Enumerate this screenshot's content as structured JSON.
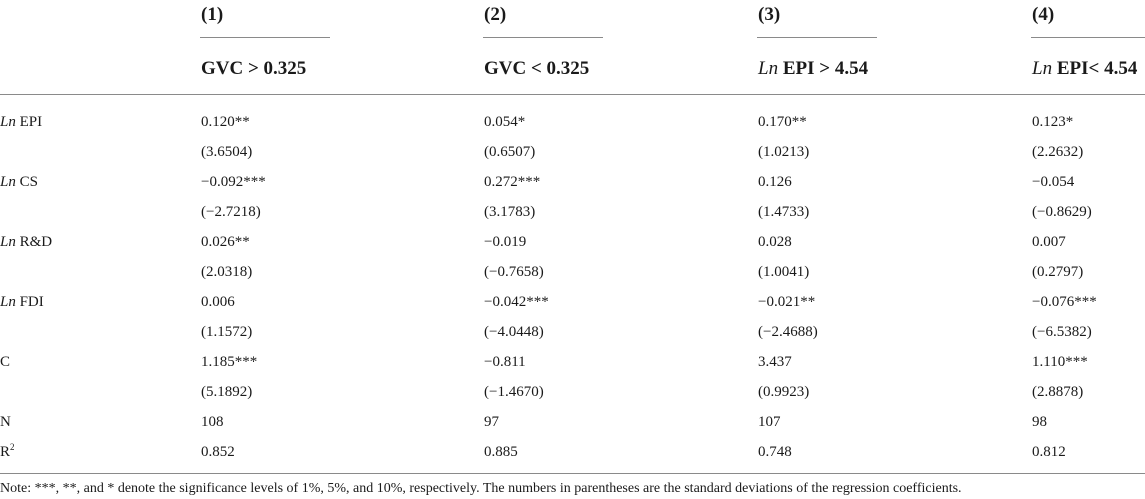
{
  "columns": [
    {
      "number": "(1)",
      "prefix": "",
      "header": "GVC > 0.325"
    },
    {
      "number": "(2)",
      "prefix": "",
      "header": "GVC < 0.325"
    },
    {
      "number": "(3)",
      "prefix": "Ln",
      "header": " EPI > 4.54"
    },
    {
      "number": "(4)",
      "prefix": "Ln",
      "header": " EPI< 4.54"
    }
  ],
  "rows": [
    {
      "prefix": "Ln",
      "label": " EPI",
      "coef": [
        "0.120**",
        "0.054*",
        "0.170**",
        "0.123*"
      ],
      "se": [
        "(3.6504)",
        "(0.6507)",
        "(1.0213)",
        "(2.2632)"
      ]
    },
    {
      "prefix": "Ln",
      "label": " CS",
      "coef": [
        "−0.092***",
        "0.272***",
        "0.126",
        "−0.054"
      ],
      "se": [
        "(−2.7218)",
        "(3.1783)",
        "(1.4733)",
        "(−0.8629)"
      ]
    },
    {
      "prefix": "Ln",
      "label": " R&D",
      "coef": [
        "0.026**",
        "−0.019",
        "0.028",
        "0.007"
      ],
      "se": [
        "(2.0318)",
        "(−0.7658)",
        "(1.0041)",
        "(0.2797)"
      ]
    },
    {
      "prefix": "Ln",
      "label": " FDI",
      "coef": [
        "0.006",
        "−0.042***",
        "−0.021**",
        "−0.076***"
      ],
      "se": [
        "(1.1572)",
        "(−4.0448)",
        "(−2.4688)",
        "(−6.5382)"
      ]
    },
    {
      "prefix": "",
      "label": "C",
      "coef": [
        "1.185***",
        "−0.811",
        "3.437",
        "1.110***"
      ],
      "se": [
        "(5.1892)",
        "(−1.4670)",
        "(0.9923)",
        "(2.8878)"
      ]
    }
  ],
  "stats": [
    {
      "label": "N",
      "sup": "",
      "values": [
        "108",
        "97",
        "107",
        "98"
      ]
    },
    {
      "label": "R",
      "sup": "2",
      "values": [
        "0.852",
        "0.885",
        "0.748",
        "0.812"
      ]
    }
  ],
  "note": "Note: ***, **, and * denote the significance levels of 1%, 5%, and 10%, respectively. The numbers in parentheses are the standard deviations of the regression coefficients."
}
